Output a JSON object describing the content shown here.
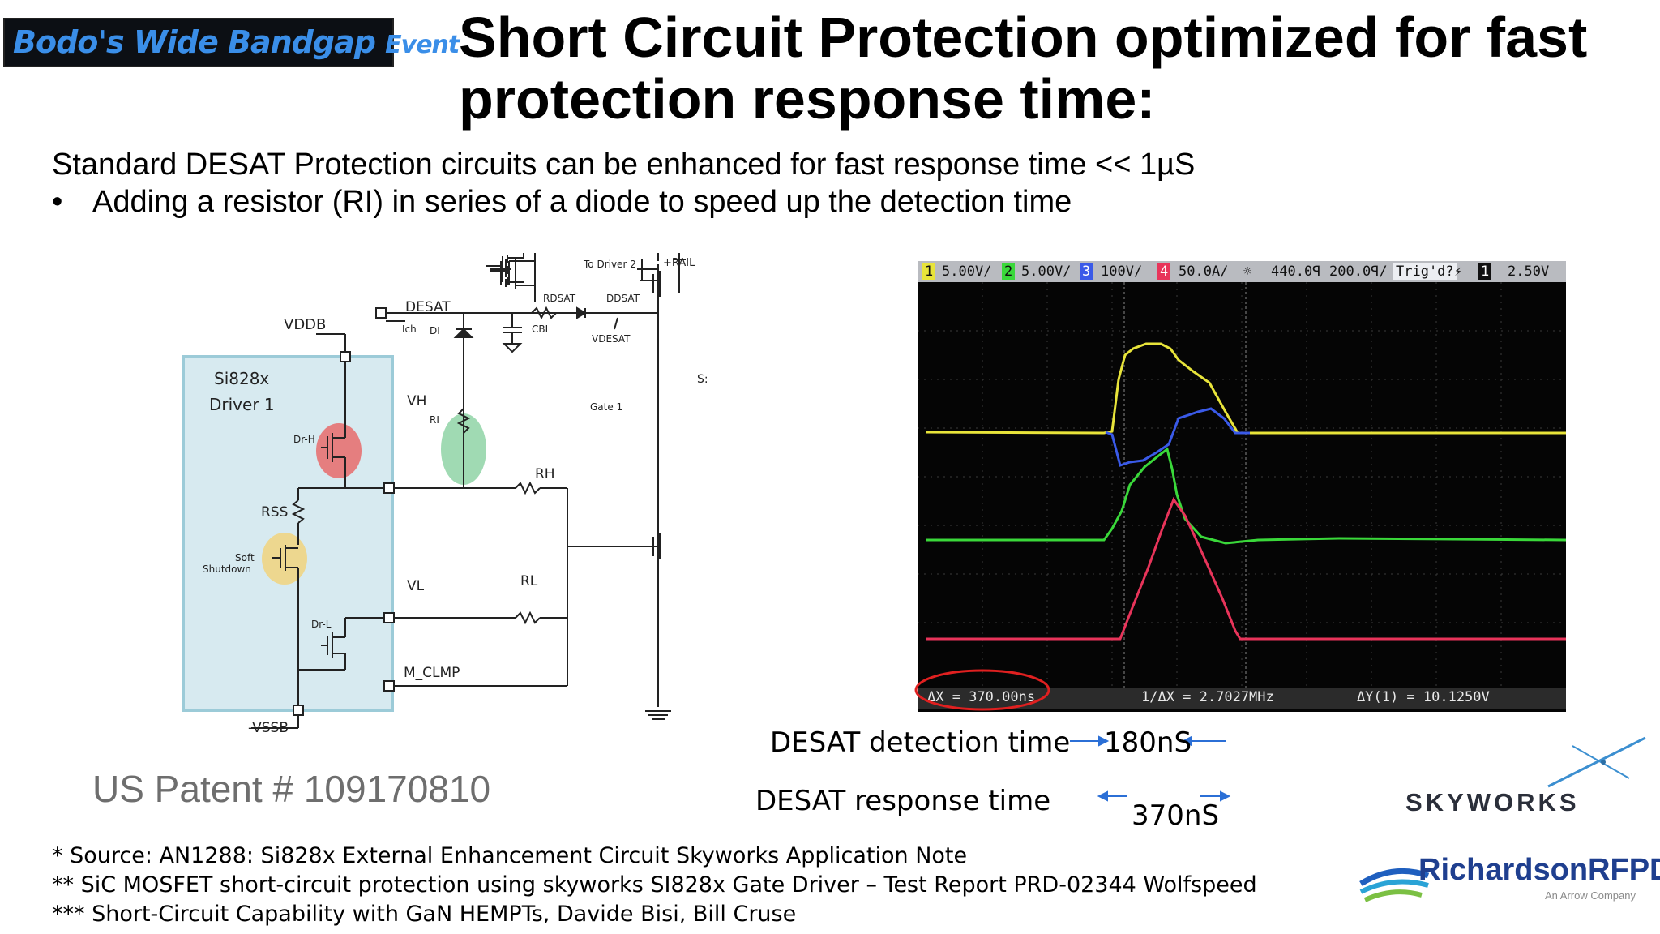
{
  "logo": {
    "text_main": "Bodo's Wide Bandgap",
    "text_event": "Event",
    "bg_color": "#0c0f14",
    "text_color": "#3a8ee8"
  },
  "title": "Short Circuit Protection optimized for fast protection response time:",
  "subtitle": "Standard DESAT Protection circuits can be enhanced for fast response time << 1µS",
  "bullet": {
    "marker": "•",
    "text": "Adding a resistor (RI) in series of a diode to speed up the detection time"
  },
  "schematic": {
    "rail": "+RAIL",
    "vddb": "VDDB",
    "driver_name": "Si828x",
    "driver_number": "Driver 1",
    "dr_h": "Dr-H",
    "dr_l": "Dr-L",
    "rss": "RSS",
    "soft": "Soft",
    "shutdown": "Shutdown",
    "desat": "DESAT",
    "ich": "Ich",
    "di": "DI",
    "ri": "RI",
    "cbl": "CBL",
    "rdsat": "RDSAT",
    "ddsat": "DDSAT",
    "vdesat": "VDESAT",
    "to_driver2": "To Driver 2",
    "s1": "S:",
    "s2": "S:",
    "vh": "VH",
    "rh": "RH",
    "gate1": "Gate 1",
    "vl": "VL",
    "rl": "RL",
    "m_clmp": "M_CLMP",
    "vssb": "-VSSB",
    "colors": {
      "driver_box": "#d7eaf0",
      "driver_border": "#9ccbd8",
      "dr_h": "#e76b6b",
      "soft": "#f0d584",
      "diode": "#8fd4a6"
    }
  },
  "scope": {
    "top_bar": {
      "ch1_num": "1",
      "ch1": "5.00V/",
      "ch2_num": "2",
      "ch2": "5.00V/",
      "ch3_num": "3",
      "ch3": "100V/",
      "ch4_num": "4",
      "ch4": "50.0A/",
      "time_pos": "440.0ꟼ",
      "time_div": "200.0ꟼ/",
      "trig": "Trig'd?",
      "trig_ch": "1",
      "trig_level": "2.50V"
    },
    "bottom_bar": {
      "dx": "ΔX = 370.00ns",
      "inv_dx": "1/ΔX = 2.7027MHz",
      "dy": "ΔY(1) = 10.1250V"
    },
    "trace_colors": {
      "ch1": "#e8e43a",
      "ch2": "#3ad83a",
      "ch3": "#3a5ae8",
      "ch4": "#e83a6a"
    },
    "marker_colors": {
      "ch1": "#e8e43a",
      "ch2": "#3ad83a",
      "ch3": "#3a5ae8",
      "ch4": "#e8345a"
    }
  },
  "timing": {
    "detection_label": "DESAT detection time",
    "detection_value": "180nS",
    "response_label": "DESAT response time",
    "response_value": "370nS"
  },
  "patent": "US Patent # 109170810",
  "footnotes": [
    "* Source: AN1288: Si828x External Enhancement Circuit Skyworks Application Note",
    "** SiC MOSFET short-circuit protection using skyworks SI828x Gate Driver – Test Report PRD-02344 Wolfspeed",
    "*** Short-Circuit Capability with GaN HEMPTs, Davide Bisi, Bill Cruse"
  ],
  "skyworks": "SKYWORKS",
  "richardson": {
    "name": "RichardsonRFPD",
    "tagline": "An Arrow Company"
  }
}
